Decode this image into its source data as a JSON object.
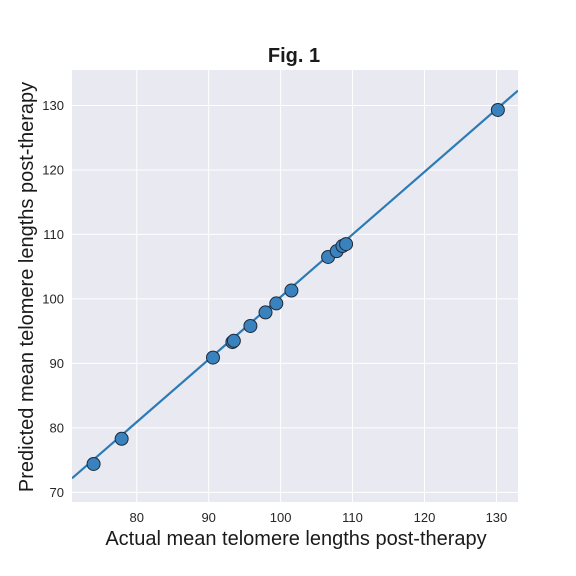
{
  "chart_data": {
    "type": "scatter",
    "title": "Fig. 1",
    "xlabel": "Actual mean telomere lengths post-therapy",
    "ylabel": "Predicted mean telomere lengths post-therapy",
    "xlim": [
      71,
      133
    ],
    "ylim": [
      68.5,
      135.5
    ],
    "x_ticks": [
      80,
      90,
      100,
      110,
      120,
      130
    ],
    "y_ticks": [
      70,
      80,
      90,
      100,
      110,
      120,
      130
    ],
    "grid": true,
    "background_color": "#e9e9f1",
    "point_color": "#3a82be",
    "line_color": "#2c7bb6",
    "fit_line": {
      "slope": 0.97,
      "intercept": 3.3
    },
    "points": [
      {
        "x": 74.0,
        "y": 74.4
      },
      {
        "x": 77.9,
        "y": 78.3
      },
      {
        "x": 90.6,
        "y": 90.9
      },
      {
        "x": 93.3,
        "y": 93.3
      },
      {
        "x": 93.5,
        "y": 93.5
      },
      {
        "x": 95.8,
        "y": 95.8
      },
      {
        "x": 97.9,
        "y": 97.9
      },
      {
        "x": 99.4,
        "y": 99.3
      },
      {
        "x": 101.5,
        "y": 101.3
      },
      {
        "x": 106.6,
        "y": 106.5
      },
      {
        "x": 107.8,
        "y": 107.4
      },
      {
        "x": 108.6,
        "y": 108.2
      },
      {
        "x": 109.1,
        "y": 108.5
      },
      {
        "x": 130.2,
        "y": 129.3
      }
    ]
  }
}
